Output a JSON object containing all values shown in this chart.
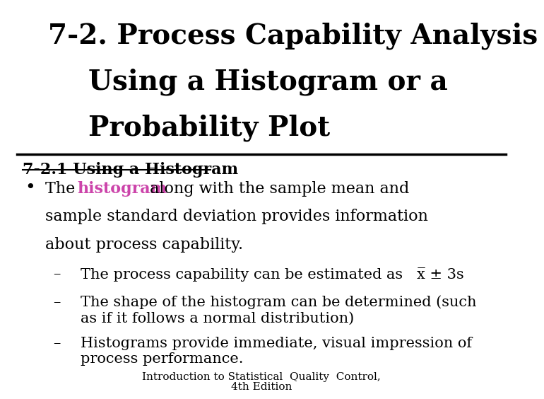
{
  "title_line1": "7-2. Process Capability Analysis",
  "title_line2": "Using a Histogram or a",
  "title_line3": "Probability Plot",
  "section_heading": "7-2.1 Using a Histogram",
  "highlight_color": "#CC44AA",
  "footer_line1": "Introduction to Statistical  Quality  Control,",
  "footer_line2": "4th Edition",
  "bg_color": "#ffffff",
  "text_color": "#000000",
  "title_fontsize": 28,
  "heading_fontsize": 16,
  "body_fontsize": 16,
  "sub_fontsize": 15,
  "footer_fontsize": 11
}
